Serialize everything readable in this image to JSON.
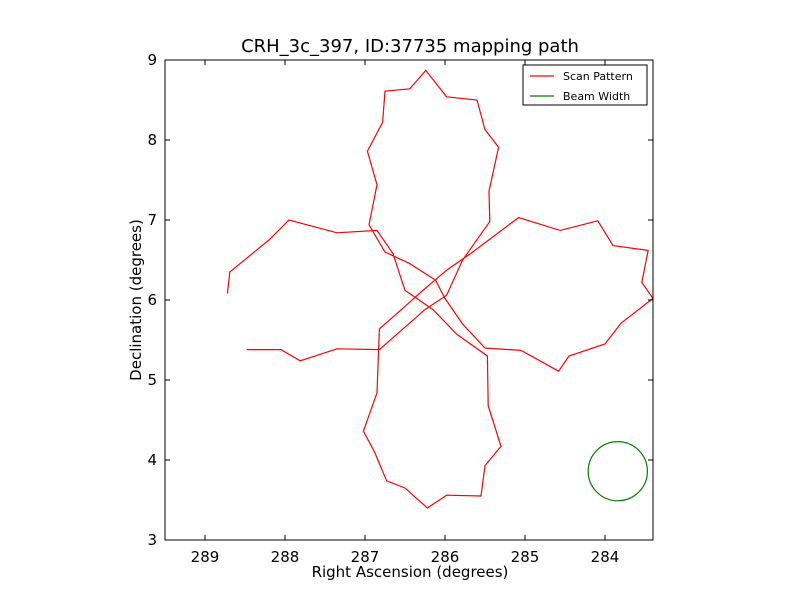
{
  "chart_data": {
    "type": "line",
    "title": "CRH_3c_397, ID:37735 mapping path",
    "xlabel": "Right Ascension (degrees)",
    "ylabel": "Declination (degrees)",
    "xlim": [
      289.5,
      283.4
    ],
    "ylim": [
      3,
      9
    ],
    "xticks": [
      289,
      288,
      287,
      286,
      285,
      284
    ],
    "yticks": [
      3,
      4,
      5,
      6,
      7,
      8,
      9
    ],
    "grid": false,
    "legend_position": "top-right",
    "colors": {
      "scan": "#ff0000",
      "beam": "#008000"
    },
    "series": [
      {
        "name": "Scan Pattern",
        "kind": "line",
        "points": [
          [
            288.72,
            6.08
          ],
          [
            288.69,
            6.35
          ],
          [
            288.2,
            6.75
          ],
          [
            287.95,
            7.0
          ],
          [
            287.35,
            6.84
          ],
          [
            286.85,
            6.87
          ],
          [
            286.65,
            6.58
          ],
          [
            286.5,
            6.12
          ],
          [
            286.15,
            5.88
          ],
          [
            285.85,
            5.57
          ],
          [
            285.47,
            5.3
          ],
          [
            285.46,
            4.68
          ],
          [
            285.3,
            4.17
          ],
          [
            285.5,
            3.93
          ],
          [
            285.55,
            3.55
          ],
          [
            285.98,
            3.56
          ],
          [
            286.22,
            3.4
          ],
          [
            286.5,
            3.65
          ],
          [
            286.73,
            3.74
          ],
          [
            286.88,
            4.1
          ],
          [
            287.02,
            4.36
          ],
          [
            286.85,
            4.84
          ],
          [
            286.82,
            5.64
          ],
          [
            286.5,
            5.92
          ],
          [
            286.3,
            6.1
          ],
          [
            285.97,
            6.38
          ],
          [
            285.68,
            6.58
          ],
          [
            285.08,
            7.03
          ],
          [
            284.56,
            6.87
          ],
          [
            284.09,
            6.99
          ],
          [
            283.9,
            6.68
          ],
          [
            283.46,
            6.62
          ],
          [
            283.54,
            6.22
          ],
          [
            283.4,
            6.02
          ],
          [
            283.8,
            5.71
          ],
          [
            284.0,
            5.45
          ],
          [
            284.45,
            5.3
          ],
          [
            284.58,
            5.11
          ],
          [
            285.05,
            5.37
          ],
          [
            285.5,
            5.4
          ],
          [
            285.78,
            5.7
          ],
          [
            286.0,
            6.02
          ],
          [
            286.12,
            6.25
          ],
          [
            286.45,
            6.46
          ],
          [
            286.75,
            6.6
          ],
          [
            286.95,
            6.94
          ],
          [
            286.85,
            7.44
          ],
          [
            286.97,
            7.86
          ],
          [
            286.78,
            8.22
          ],
          [
            286.75,
            8.61
          ],
          [
            286.44,
            8.64
          ],
          [
            286.24,
            8.87
          ],
          [
            285.98,
            8.54
          ],
          [
            285.6,
            8.5
          ],
          [
            285.5,
            8.13
          ],
          [
            285.33,
            7.91
          ],
          [
            285.45,
            7.36
          ],
          [
            285.44,
            6.98
          ],
          [
            285.78,
            6.5
          ],
          [
            285.98,
            6.06
          ],
          [
            286.25,
            5.88
          ],
          [
            286.82,
            5.38
          ],
          [
            287.35,
            5.39
          ],
          [
            287.81,
            5.24
          ],
          [
            288.05,
            5.38
          ],
          [
            288.48,
            5.38
          ]
        ]
      },
      {
        "name": "Beam Width",
        "kind": "circle",
        "center": [
          283.84,
          3.86
        ],
        "radius": 0.37
      }
    ]
  }
}
